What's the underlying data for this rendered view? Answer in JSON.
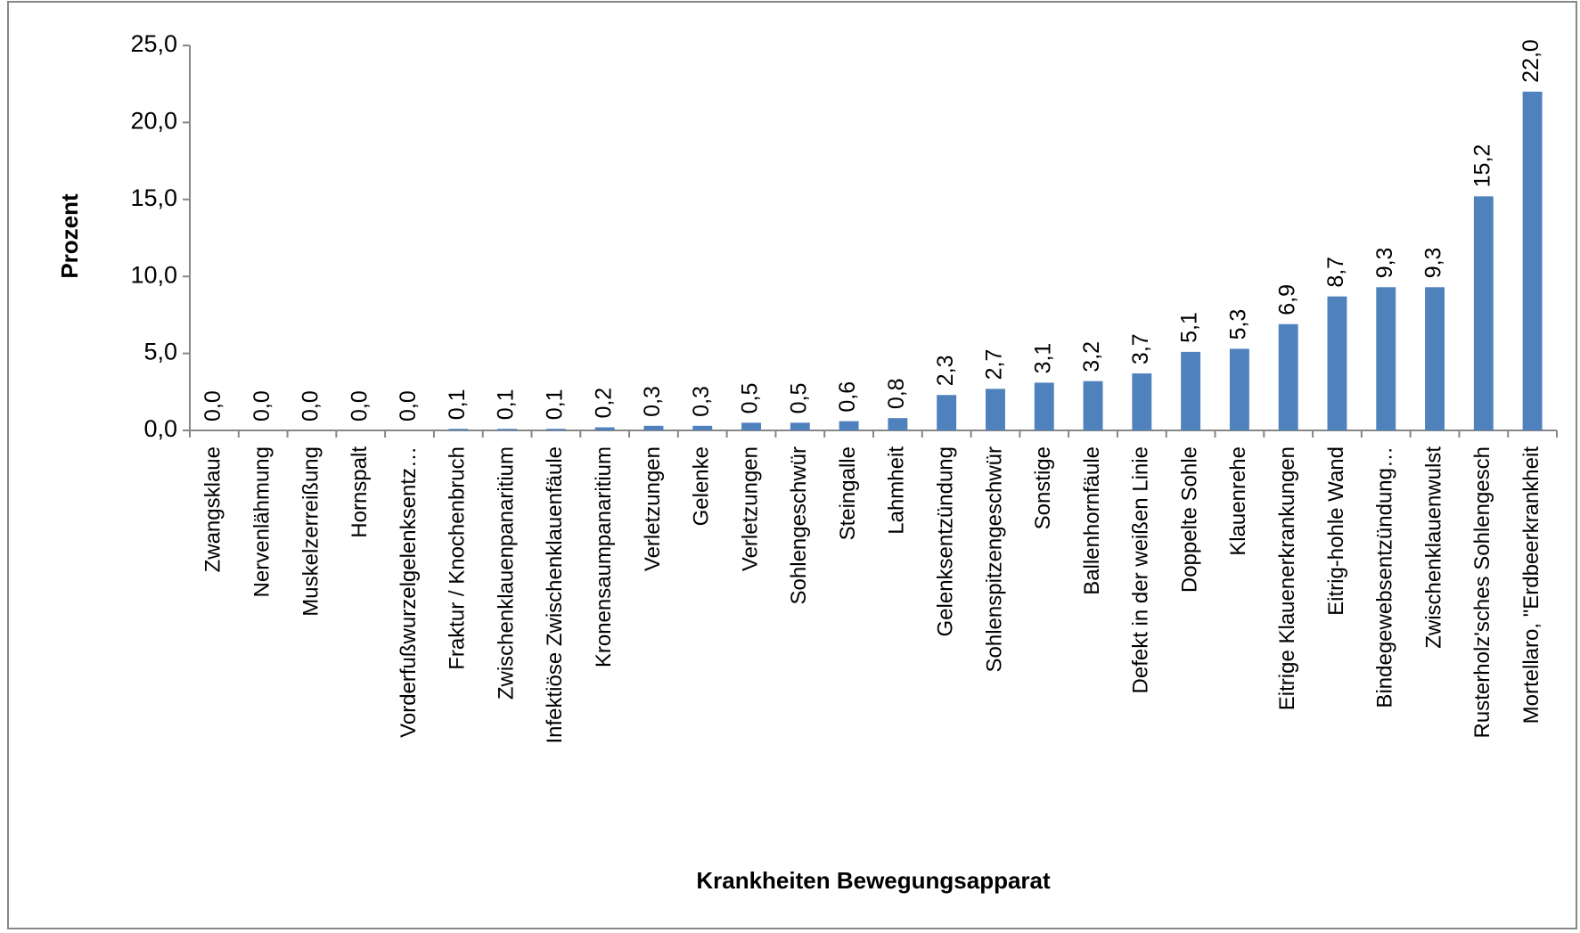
{
  "chart_data": {
    "type": "bar",
    "categories": [
      "Zwangsklaue",
      "Nervenlähmung",
      "Muskelzerreißung",
      "Hornspalt",
      "Vorderfußwurzelgelenksentz…",
      "Fraktur / Knochenbruch",
      "Zwischenklauenpanaritium",
      "Infektiöse Zwischenklauenfäule",
      "Kronensaumpanaritium",
      "Verletzungen",
      "Gelenke",
      "Verletzungen",
      "Sohlengeschwür",
      "Steingalle",
      "Lahmheit",
      "Gelenksentzündung",
      "Sohlenspitzengeschwür",
      "Sonstige",
      "Ballenhornfäule",
      "Defekt in der weißen Linie",
      "Doppelte Sohle",
      "Klauenrehe",
      "Eitrige Klauenerkrankungen",
      "Eitrig-hohle Wand",
      "Bindegewebsentzündung…",
      "Zwischenklauenwulst",
      "Rusterholz'sches Sohlengesch",
      "Mortellaro, \"Erdbeerkrankheit"
    ],
    "values": [
      0.0,
      0.0,
      0.0,
      0.0,
      0.0,
      0.1,
      0.1,
      0.1,
      0.2,
      0.3,
      0.3,
      0.5,
      0.5,
      0.6,
      0.8,
      2.3,
      2.7,
      3.1,
      3.2,
      3.7,
      5.1,
      5.3,
      6.9,
      8.7,
      9.3,
      9.3,
      15.2,
      22.0
    ],
    "value_labels": [
      "0,0",
      "0,0",
      "0,0",
      "0,0",
      "0,0",
      "0,1",
      "0,1",
      "0,1",
      "0,2",
      "0,3",
      "0,3",
      "0,5",
      "0,5",
      "0,6",
      "0,8",
      "2,3",
      "2,7",
      "3,1",
      "3,2",
      "3,7",
      "5,1",
      "5,3",
      "6,9",
      "8,7",
      "9,3",
      "9,3",
      "15,2",
      "22,0"
    ],
    "color": "#4f81bd",
    "x_label": "Krankheiten Bewegungsapparat",
    "y_label": "Prozent",
    "ylim": [
      0,
      25
    ],
    "yticks": [
      {
        "value": 0,
        "label": "0,0"
      },
      {
        "value": 5,
        "label": "5,0"
      },
      {
        "value": 10,
        "label": "10,0"
      },
      {
        "value": 15,
        "label": "15,0"
      },
      {
        "value": 20,
        "label": "20,0"
      },
      {
        "value": 25,
        "label": "25,0"
      }
    ],
    "grid": false
  }
}
